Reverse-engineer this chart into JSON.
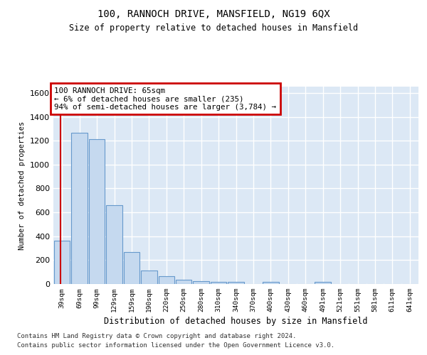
{
  "title": "100, RANNOCH DRIVE, MANSFIELD, NG19 6QX",
  "subtitle": "Size of property relative to detached houses in Mansfield",
  "xlabel": "Distribution of detached houses by size in Mansfield",
  "ylabel": "Number of detached properties",
  "categories": [
    "39sqm",
    "69sqm",
    "99sqm",
    "129sqm",
    "159sqm",
    "190sqm",
    "220sqm",
    "250sqm",
    "280sqm",
    "310sqm",
    "340sqm",
    "370sqm",
    "400sqm",
    "430sqm",
    "460sqm",
    "491sqm",
    "521sqm",
    "551sqm",
    "581sqm",
    "611sqm",
    "641sqm"
  ],
  "values": [
    360,
    1265,
    1210,
    660,
    265,
    115,
    68,
    35,
    22,
    15,
    15,
    0,
    15,
    0,
    0,
    18,
    0,
    0,
    0,
    0,
    0
  ],
  "bar_color": "#c5d9ef",
  "bar_edge_color": "#6699cc",
  "annotation_line1": "100 RANNOCH DRIVE: 65sqm",
  "annotation_line2": "← 6% of detached houses are smaller (235)",
  "annotation_line3": "94% of semi-detached houses are larger (3,784) →",
  "annotation_box_color": "#ffffff",
  "annotation_box_edge_color": "#cc0000",
  "vline_color": "#cc0000",
  "ylim": [
    0,
    1650
  ],
  "yticks": [
    0,
    200,
    400,
    600,
    800,
    1000,
    1200,
    1400,
    1600
  ],
  "bg_color": "#dce8f5",
  "grid_color": "#ffffff",
  "footer_line1": "Contains HM Land Registry data © Crown copyright and database right 2024.",
  "footer_line2": "Contains public sector information licensed under the Open Government Licence v3.0."
}
